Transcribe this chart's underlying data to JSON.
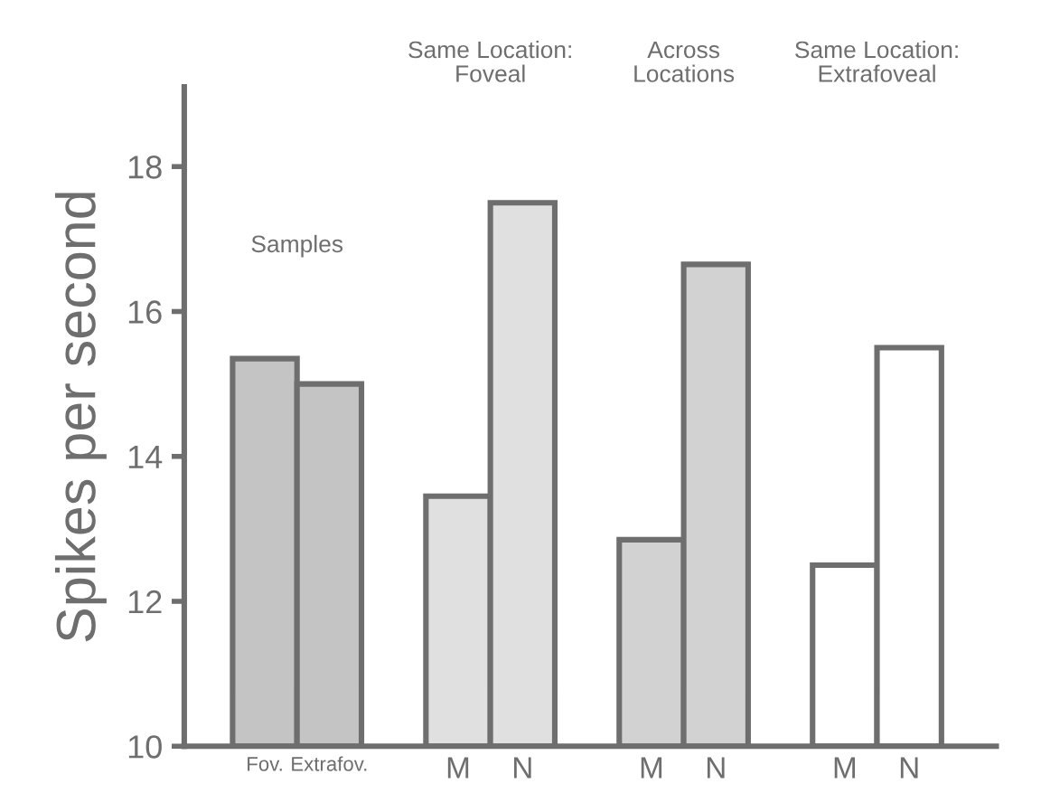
{
  "chart_data": {
    "type": "bar",
    "categories": [
      "Fov.",
      "Extrafov.",
      null,
      "M",
      "N",
      null,
      "M",
      "N",
      null,
      "M",
      "N"
    ],
    "values": [
      15.35,
      15.0,
      null,
      13.45,
      17.5,
      null,
      12.85,
      16.65,
      null,
      12.5,
      15.5
    ],
    "colors": [
      "#c4c4c4",
      "#c4c4c4",
      "#ffffff",
      "#e0e0e0",
      "#e0e0e0",
      "#ffffff",
      "#d2d2d2",
      "#d2d2d2",
      "#ffffff",
      "#ffffff",
      "#ffffff"
    ],
    "ylabel": "Spikes per second",
    "ylim": [
      10,
      19.1
    ],
    "yticks": [
      10,
      12,
      14,
      16,
      18
    ],
    "annotations": [
      "Samples",
      "Same Location:\nFoveal",
      "Across\nLocations",
      "Same Location:\nExtrafoveal"
    ],
    "grid": false,
    "legend": false
  }
}
